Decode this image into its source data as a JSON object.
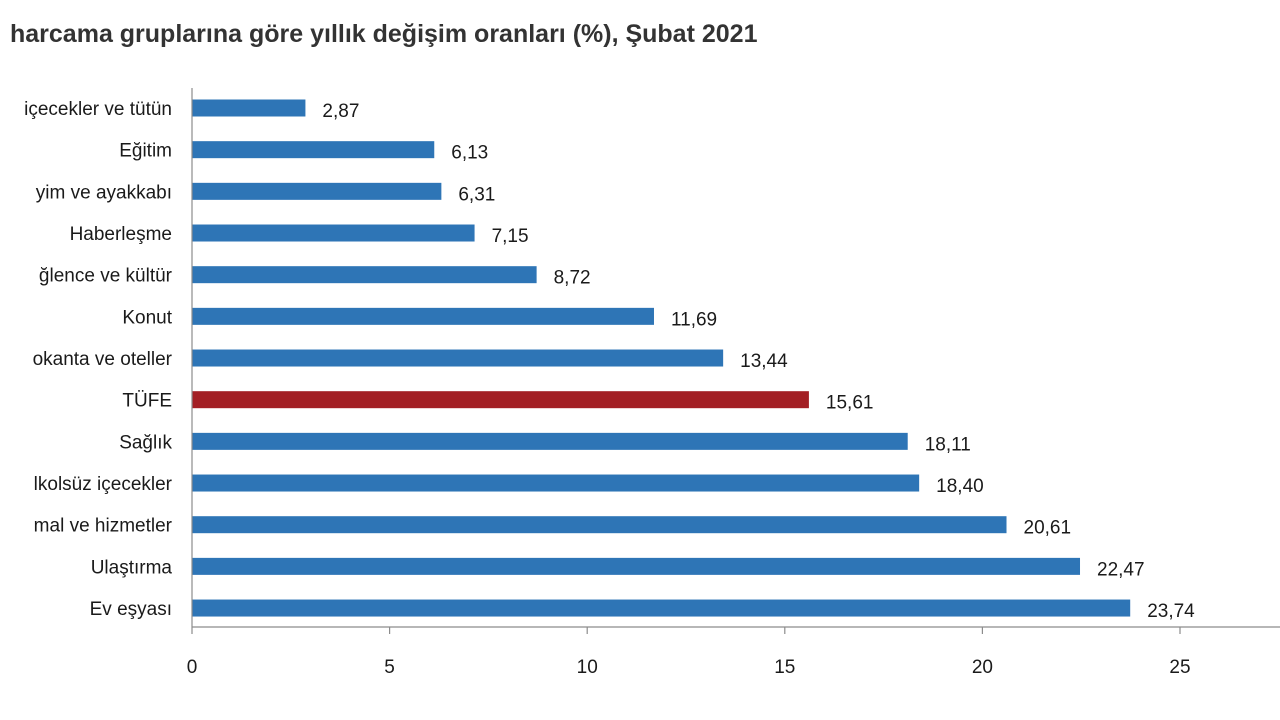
{
  "chart_data": {
    "type": "bar",
    "orientation": "horizontal",
    "title": "harcama gruplarına göre yıllık değişim oranları (%), Şubat 2021",
    "categories": [
      "içecekler ve tütün",
      "Eğitim",
      "yim ve ayakkabı",
      "Haberleşme",
      "ğlence ve kültür",
      "Konut",
      "okanta ve oteller",
      "TÜFE",
      "Sağlık",
      "lkolsüz içecekler",
      "mal ve hizmetler",
      "Ulaştırma",
      "Ev eşyası"
    ],
    "values": [
      2.87,
      6.13,
      6.31,
      7.15,
      8.72,
      11.69,
      13.44,
      15.61,
      18.11,
      18.4,
      20.61,
      22.47,
      23.74
    ],
    "value_labels": [
      "2,87",
      "6,13",
      "6,31",
      "7,15",
      "8,72",
      "11,69",
      "13,44",
      "15,61",
      "18,11",
      "18,40",
      "20,61",
      "22,47",
      "23,74"
    ],
    "highlight_category": "TÜFE",
    "xlim": [
      0,
      25
    ],
    "xticks": [
      0,
      5,
      10,
      15,
      20,
      25
    ],
    "xtick_labels": [
      "0",
      "5",
      "10",
      "15",
      "20",
      "25"
    ],
    "grid": false,
    "colors": {
      "bar": "#2e75b6",
      "highlight": "#a31f24",
      "axis": "#8c8c8c"
    }
  }
}
